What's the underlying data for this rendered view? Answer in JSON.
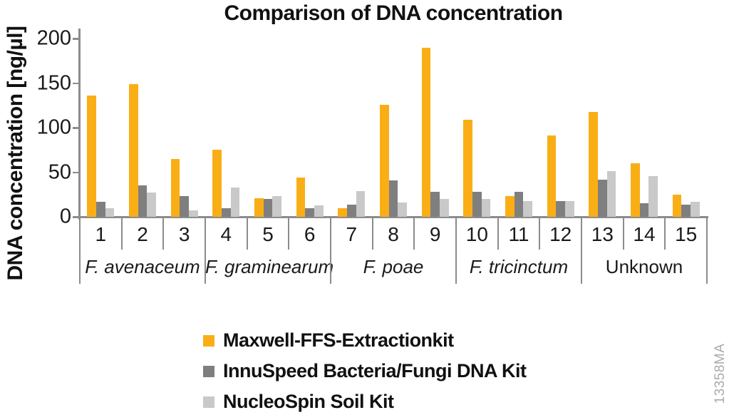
{
  "title": "Comparison of DNA concentration",
  "ylabel": "DNA concentration [ng/µl]",
  "watermark": "13358MA",
  "colors": {
    "series_orange": "#faae16",
    "series_dark_gray": "#7f7f7f",
    "series_light_gray": "#c9c9c9",
    "axis": "#8c8c8c",
    "text": "#1a1a1a",
    "watermark": "#ababab"
  },
  "chart_data": {
    "type": "bar",
    "title": "Comparison of DNA concentration",
    "xlabel": "",
    "ylabel": "DNA concentration [ng/µl]",
    "ylim": [
      0,
      210
    ],
    "y_ticks": [
      0,
      50,
      100,
      150,
      200
    ],
    "grid": false,
    "legend_position": "bottom",
    "categories": [
      "1",
      "2",
      "3",
      "4",
      "5",
      "6",
      "7",
      "8",
      "9",
      "10",
      "11",
      "12",
      "13",
      "14",
      "15"
    ],
    "groups": [
      {
        "label": "F. avenaceum",
        "start": 0,
        "count": 3,
        "italic": true
      },
      {
        "label": "F. graminearum",
        "start": 3,
        "count": 3,
        "italic": true
      },
      {
        "label": "F. poae",
        "start": 6,
        "count": 3,
        "italic": true
      },
      {
        "label": "F. tricinctum",
        "start": 9,
        "count": 3,
        "italic": true
      },
      {
        "label": "Unknown",
        "start": 12,
        "count": 3,
        "italic": false
      }
    ],
    "series": [
      {
        "name": "Maxwell-FFS-Extractionkit",
        "color": "#faae16",
        "values": [
          136,
          149,
          65,
          75,
          21,
          44,
          10,
          126,
          190,
          109,
          23,
          91,
          118,
          60,
          25
        ]
      },
      {
        "name": "InnuSpeed Bacteria/Fungi DNA Kit",
        "color": "#7f7f7f",
        "values": [
          17,
          35,
          23,
          10,
          20,
          10,
          14,
          41,
          28,
          28,
          28,
          18,
          42,
          15,
          14
        ]
      },
      {
        "name": "NucleoSpin Soil Kit",
        "color": "#c9c9c9",
        "values": [
          10,
          27,
          7,
          33,
          23,
          13,
          29,
          16,
          20,
          20,
          18,
          18,
          51,
          46,
          17
        ]
      }
    ]
  },
  "legend": {
    "items": [
      {
        "label": "Maxwell-FFS-Extractionkit",
        "color": "#faae16"
      },
      {
        "label": "InnuSpeed Bacteria/Fungi DNA Kit",
        "color": "#7f7f7f"
      },
      {
        "label": "NucleoSpin Soil Kit",
        "color": "#c9c9c9"
      }
    ]
  }
}
